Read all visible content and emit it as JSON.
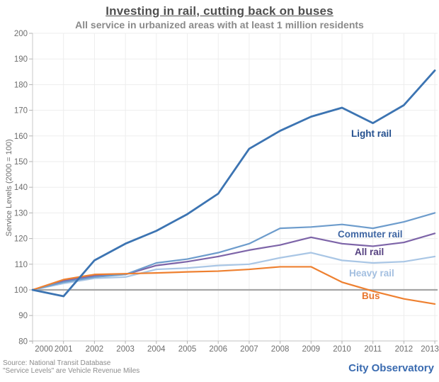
{
  "header": {
    "title": "Investing in rail, cutting back on buses",
    "subtitle": "All service in urbanized areas with at least 1 million residents"
  },
  "footer": {
    "source_line1": "Source: National Transit Database",
    "source_line2": "\"Service Levels\" are Vehicle Revenue Miles",
    "brand": "City Observatory"
  },
  "chart_data": {
    "type": "line",
    "title": "Investing in rail, cutting back on buses",
    "subtitle": "All service in urbanized areas with at least 1 million residents",
    "xlabel": "",
    "ylabel": "Service Levels (2000 = 100)",
    "ylim": [
      80,
      200
    ],
    "ytick_step": 10,
    "grid": true,
    "legend_position": "inline-labels-right",
    "x": [
      2000,
      2001,
      2002,
      2003,
      2004,
      2005,
      2006,
      2007,
      2008,
      2009,
      2010,
      2011,
      2012,
      2013
    ],
    "series": [
      {
        "name": "Light rail",
        "color": "#3c74b2",
        "label_color": "#24508f",
        "values": [
          100,
          97.5,
          111.5,
          118,
          123,
          129.5,
          137.5,
          155,
          162,
          167.5,
          171,
          165,
          172,
          185.5
        ]
      },
      {
        "name": "Commuter rail",
        "color": "#6d9ccc",
        "label_color": "#3f66a3",
        "values": [
          100,
          103,
          105,
          106,
          110.5,
          112,
          114.5,
          118,
          124,
          124.5,
          125.5,
          124,
          126.5,
          130
        ]
      },
      {
        "name": "All rail",
        "color": "#7d64a8",
        "label_color": "#544080",
        "values": [
          100,
          103.5,
          105.5,
          106,
          109.5,
          111,
          113,
          115.5,
          117.5,
          120.5,
          118,
          117,
          118.5,
          122
        ]
      },
      {
        "name": "Heavy rail",
        "color": "#a9c6e5",
        "label_color": "#a3bfe0",
        "values": [
          100,
          102.5,
          104.5,
          105,
          108,
          108.5,
          109.5,
          110,
          112.5,
          114.5,
          111.5,
          110.5,
          111,
          113
        ]
      },
      {
        "name": "Bus",
        "color": "#ee8030",
        "label_color": "#e8762d",
        "values": [
          100,
          104,
          106,
          106.3,
          106.6,
          107,
          107.3,
          108,
          109,
          109,
          103,
          99.5,
          96.5,
          94.5
        ]
      }
    ],
    "baseline": {
      "value": 100,
      "color": "#a5a5a5"
    }
  }
}
